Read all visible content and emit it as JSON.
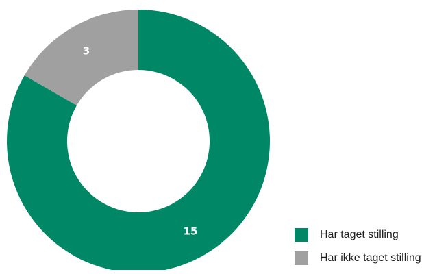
{
  "chart_data": {
    "type": "pie",
    "variant": "donut",
    "categories": [
      "Har taget stilling",
      "Har ikke taget stilling"
    ],
    "values": [
      15,
      3
    ],
    "colors": [
      "#008766",
      "#a0a0a0"
    ],
    "data_labels": [
      "15",
      "3"
    ],
    "legend": {
      "placement": "bottom-right",
      "entries": [
        "Har taget stilling",
        "Har ikke taget stilling"
      ]
    },
    "title": ""
  }
}
